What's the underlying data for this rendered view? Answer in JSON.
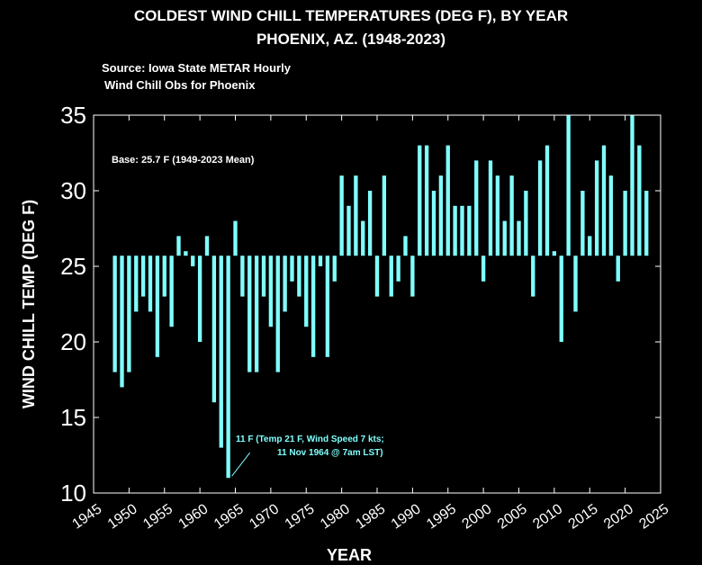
{
  "title_line1": "COLDEST WIND CHILL TEMPERATURES (DEG F), BY YEAR",
  "title_line2": "PHOENIX, AZ. (1948-2023)",
  "source_line1": "Source:  Iowa State METAR Hourly",
  "source_line2": "Wind Chill Obs for Phoenix",
  "colors": {
    "background": "#000000",
    "bar": "#80ffff",
    "text": "#ffffff",
    "annotation": "#80ffff"
  },
  "chart_data": {
    "type": "bar",
    "xlabel": "YEAR",
    "ylabel": "WIND CHILL TEMP (DEG F)",
    "xlim": [
      1945,
      2025
    ],
    "ylim": [
      10,
      35
    ],
    "xticks": [
      1945,
      1950,
      1955,
      1960,
      1965,
      1970,
      1975,
      1980,
      1985,
      1990,
      1995,
      2000,
      2005,
      2010,
      2015,
      2020,
      2025
    ],
    "yticks": [
      10,
      15,
      20,
      25,
      30,
      35
    ],
    "base": 25.7,
    "base_label": "Base: 25.7 F (1949-2023 Mean)",
    "annotation": {
      "line1": "11 F (Temp 21 F, Wind Speed 7 kts;",
      "line2": "11 Nov 1964 @ 7am LST)",
      "year": 1964,
      "value": 11
    },
    "grid": false,
    "years": [
      1948,
      1949,
      1950,
      1951,
      1952,
      1953,
      1954,
      1955,
      1956,
      1957,
      1958,
      1959,
      1960,
      1961,
      1962,
      1963,
      1964,
      1965,
      1966,
      1967,
      1968,
      1969,
      1970,
      1971,
      1972,
      1973,
      1974,
      1975,
      1976,
      1977,
      1978,
      1979,
      1980,
      1981,
      1982,
      1983,
      1984,
      1985,
      1986,
      1987,
      1988,
      1989,
      1990,
      1991,
      1992,
      1993,
      1994,
      1995,
      1996,
      1997,
      1998,
      1999,
      2000,
      2001,
      2002,
      2003,
      2004,
      2005,
      2006,
      2007,
      2008,
      2009,
      2010,
      2011,
      2012,
      2013,
      2014,
      2015,
      2016,
      2017,
      2018,
      2019,
      2020,
      2021,
      2022,
      2023
    ],
    "values": [
      18,
      17,
      18,
      22,
      23,
      22,
      19,
      23,
      21,
      27,
      26,
      25,
      20,
      27,
      16,
      13,
      11,
      28,
      23,
      18,
      18,
      23,
      21,
      18,
      22,
      24,
      23,
      21,
      19,
      25,
      19,
      24,
      31,
      29,
      31,
      28,
      30,
      23,
      31,
      23,
      24,
      27,
      23,
      33,
      33,
      30,
      31,
      33,
      29,
      29,
      29,
      32,
      24,
      32,
      31,
      28,
      31,
      28,
      30,
      23,
      32,
      33,
      26,
      20,
      35,
      22,
      30,
      27,
      32,
      33,
      31,
      24,
      30,
      35,
      33,
      30
    ]
  }
}
